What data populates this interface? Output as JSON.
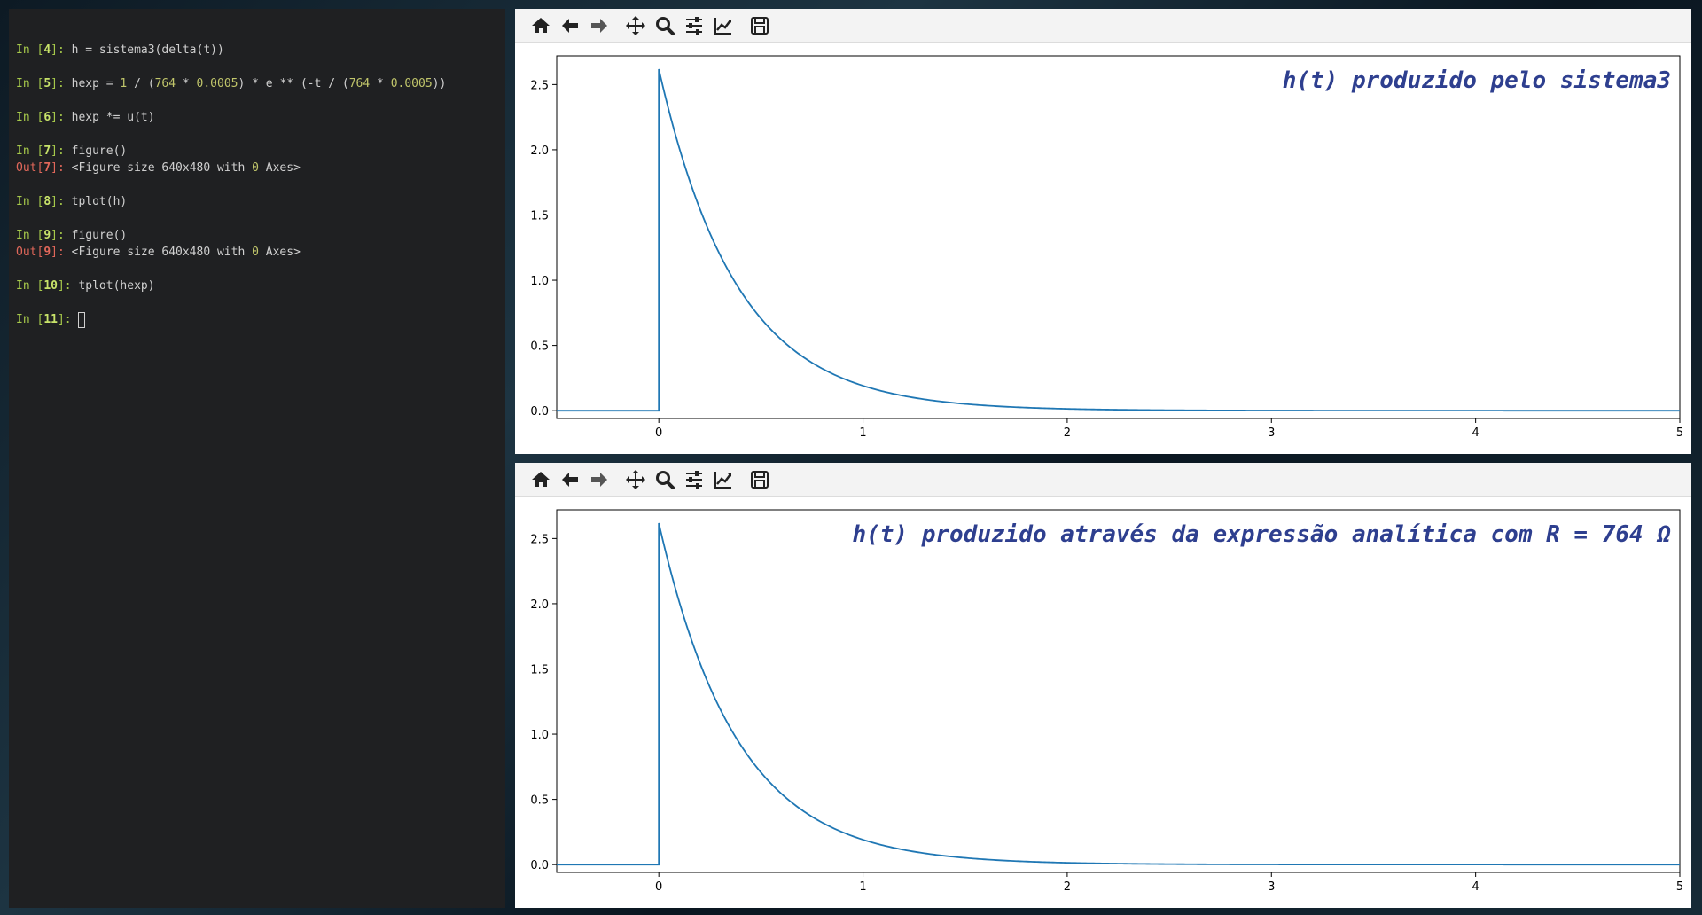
{
  "terminal": {
    "lines": [
      {
        "kind": "in",
        "n": "4",
        "code": "h = sistema3(delta(t))"
      },
      {
        "kind": "in",
        "n": "5",
        "code": "hexp = 1 / (764 * 0.0005) * e ** (-t / (764 * 0.0005))"
      },
      {
        "kind": "in",
        "n": "6",
        "code": "hexp *= u(t)"
      },
      {
        "kind": "in",
        "n": "7",
        "code": "figure()"
      },
      {
        "kind": "out",
        "n": "7",
        "code": "<Figure size 640x480 with 0 Axes>"
      },
      {
        "kind": "in",
        "n": "8",
        "code": "tplot(h)"
      },
      {
        "kind": "in",
        "n": "9",
        "code": "figure()"
      },
      {
        "kind": "out",
        "n": "9",
        "code": "<Figure size 640x480 with 0 Axes>"
      },
      {
        "kind": "in",
        "n": "10",
        "code": "tplot(hexp)"
      },
      {
        "kind": "in",
        "n": "11",
        "code": ""
      }
    ],
    "prompt_in": "In",
    "prompt_out": "Out"
  },
  "toolbar": {
    "buttons": [
      "home-icon",
      "back-icon",
      "forward-icon",
      "pan-icon",
      "zoom-icon",
      "configure-subplots-icon",
      "edit-axis-icon",
      "save-icon"
    ]
  },
  "colors": {
    "line": "#1f77b4",
    "title": "#2e3f8f",
    "terminal_bg": "#1f2022",
    "prompt_in": "#a6c94b",
    "prompt_out": "#e0675a"
  },
  "chart_data": [
    {
      "type": "line",
      "title": "h(t) produzido pelo sistema3",
      "xlabel": "",
      "ylabel": "",
      "xlim": [
        -0.5,
        5
      ],
      "ylim": [
        -0.06,
        2.72
      ],
      "xticks": [
        "0",
        "1",
        "2",
        "3",
        "4",
        "5"
      ],
      "yticks": [
        "0.0",
        "0.5",
        "1.0",
        "1.5",
        "2.0",
        "2.5"
      ],
      "series": [
        {
          "x_start": -0.5,
          "x_end": 5,
          "step_at": 0,
          "peak": 2.618,
          "tau": 0.382
        }
      ]
    },
    {
      "type": "line",
      "title": "h(t) produzido através da expressão analítica com R = 764 Ω",
      "xlabel": "",
      "ylabel": "",
      "xlim": [
        -0.5,
        5
      ],
      "ylim": [
        -0.06,
        2.72
      ],
      "xticks": [
        "0",
        "1",
        "2",
        "3",
        "4",
        "5"
      ],
      "yticks": [
        "0.0",
        "0.5",
        "1.0",
        "1.5",
        "2.0",
        "2.5"
      ],
      "series": [
        {
          "x_start": -0.5,
          "x_end": 5,
          "step_at": 0,
          "peak": 2.618,
          "tau": 0.382
        }
      ]
    }
  ]
}
